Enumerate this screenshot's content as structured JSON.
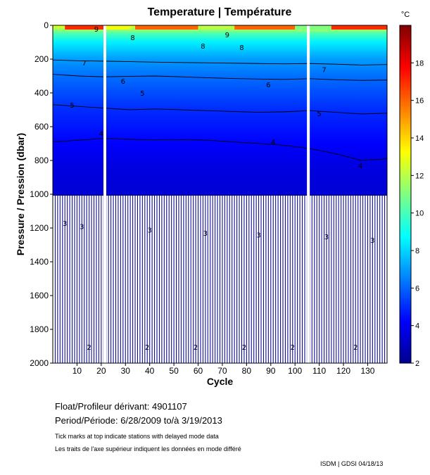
{
  "chart_data": {
    "type": "heatmap",
    "title": "Temperature | Température",
    "xlabel": "Cycle",
    "ylabel": "Pressure / Pression (dbar)",
    "xlim": [
      0,
      138
    ],
    "ylim": [
      2000,
      0
    ],
    "x_ticks": [
      10,
      20,
      30,
      40,
      50,
      60,
      70,
      80,
      90,
      100,
      110,
      120,
      130
    ],
    "y_ticks": [
      0,
      200,
      400,
      600,
      800,
      1000,
      1200,
      1400,
      1600,
      1800,
      2000
    ],
    "colorbar": {
      "unit": "°C",
      "range": [
        2,
        20
      ],
      "ticks": [
        2,
        4,
        6,
        8,
        10,
        12,
        14,
        16,
        18
      ],
      "colors": [
        "#00008f",
        "#0000ff",
        "#0080ff",
        "#00ffff",
        "#80ff80",
        "#ffff00",
        "#ff8000",
        "#ff0000",
        "#800000"
      ]
    },
    "profile_depth_limit_dbar": 1000,
    "gaps_cycles": [
      21.5,
      105.5
    ],
    "temperature_profile": [
      {
        "pressure": 0,
        "temperature": 13
      },
      {
        "pressure": 50,
        "temperature": 10
      },
      {
        "pressure": 100,
        "temperature": 8.5
      },
      {
        "pressure": 200,
        "temperature": 7
      },
      {
        "pressure": 300,
        "temperature": 6.2
      },
      {
        "pressure": 400,
        "temperature": 5.6
      },
      {
        "pressure": 500,
        "temperature": 5
      },
      {
        "pressure": 700,
        "temperature": 4.2
      },
      {
        "pressure": 850,
        "temperature": 3.6
      },
      {
        "pressure": 1000,
        "temperature": 3.4
      },
      {
        "pressure": 1200,
        "temperature": 3
      },
      {
        "pressure": 1900,
        "temperature": 2.2
      },
      {
        "pressure": 2000,
        "temperature": 2.1
      }
    ],
    "contours": [
      {
        "level": 7,
        "pressure": [
          205,
          210,
          212,
          215,
          218,
          220,
          222,
          224,
          226,
          228,
          226,
          230,
          235,
          232
        ]
      },
      {
        "level": 6,
        "pressure": [
          290,
          300,
          305,
          302,
          300,
          305,
          310,
          315,
          318,
          320,
          316,
          322,
          326,
          324
        ]
      },
      {
        "level": 5,
        "pressure": [
          470,
          480,
          490,
          500,
          495,
          500,
          505,
          510,
          515,
          512,
          505,
          515,
          525,
          520
        ]
      },
      {
        "level": 4,
        "pressure": [
          690,
          680,
          670,
          675,
          678,
          676,
          680,
          690,
          700,
          710,
          730,
          760,
          800,
          790
        ]
      }
    ],
    "contour_labels": [
      {
        "text": "9",
        "cycle": 18,
        "pressure": 20
      },
      {
        "text": "9",
        "cycle": 72,
        "pressure": 55
      },
      {
        "text": "8",
        "cycle": 33,
        "pressure": 70
      },
      {
        "text": "8",
        "cycle": 62,
        "pressure": 120
      },
      {
        "text": "8",
        "cycle": 78,
        "pressure": 130
      },
      {
        "text": "7",
        "cycle": 13,
        "pressure": 220
      },
      {
        "text": "7",
        "cycle": 112,
        "pressure": 260
      },
      {
        "text": "6",
        "cycle": 29,
        "pressure": 330
      },
      {
        "text": "6",
        "cycle": 89,
        "pressure": 350
      },
      {
        "text": "5",
        "cycle": 37,
        "pressure": 400
      },
      {
        "text": "5",
        "cycle": 8,
        "pressure": 470
      },
      {
        "text": "5",
        "cycle": 110,
        "pressure": 520
      },
      {
        "text": "4",
        "cycle": 20,
        "pressure": 640
      },
      {
        "text": "4",
        "cycle": 91,
        "pressure": 690
      },
      {
        "text": "4",
        "cycle": 127,
        "pressure": 830
      },
      {
        "text": "3",
        "cycle": 5,
        "pressure": 1170
      },
      {
        "text": "3",
        "cycle": 12,
        "pressure": 1190
      },
      {
        "text": "3",
        "cycle": 40,
        "pressure": 1210
      },
      {
        "text": "3",
        "cycle": 63,
        "pressure": 1230
      },
      {
        "text": "3",
        "cycle": 85,
        "pressure": 1240
      },
      {
        "text": "3",
        "cycle": 113,
        "pressure": 1250
      },
      {
        "text": "3",
        "cycle": 132,
        "pressure": 1270
      },
      {
        "text": "2",
        "cycle": 15,
        "pressure": 1905
      },
      {
        "text": "2",
        "cycle": 39,
        "pressure": 1905
      },
      {
        "text": "2",
        "cycle": 59,
        "pressure": 1905
      },
      {
        "text": "2",
        "cycle": 79,
        "pressure": 1905
      },
      {
        "text": "2",
        "cycle": 99,
        "pressure": 1905
      },
      {
        "text": "2",
        "cycle": 125,
        "pressure": 1905
      }
    ]
  },
  "info": {
    "float_label": "Float/Profileur dérivant:",
    "float_value": "4901107",
    "period_label": "Period/Période:",
    "period_start": "6/28/2009",
    "period_join": "to/à",
    "period_end": "3/19/2013",
    "note_en": "Tick marks at top indicate stations with delayed mode data",
    "note_fr": "Les traits de l'axe supérieur indiquent les données en mode différé",
    "credit": "ISDM | GDSI  04/18/13"
  }
}
